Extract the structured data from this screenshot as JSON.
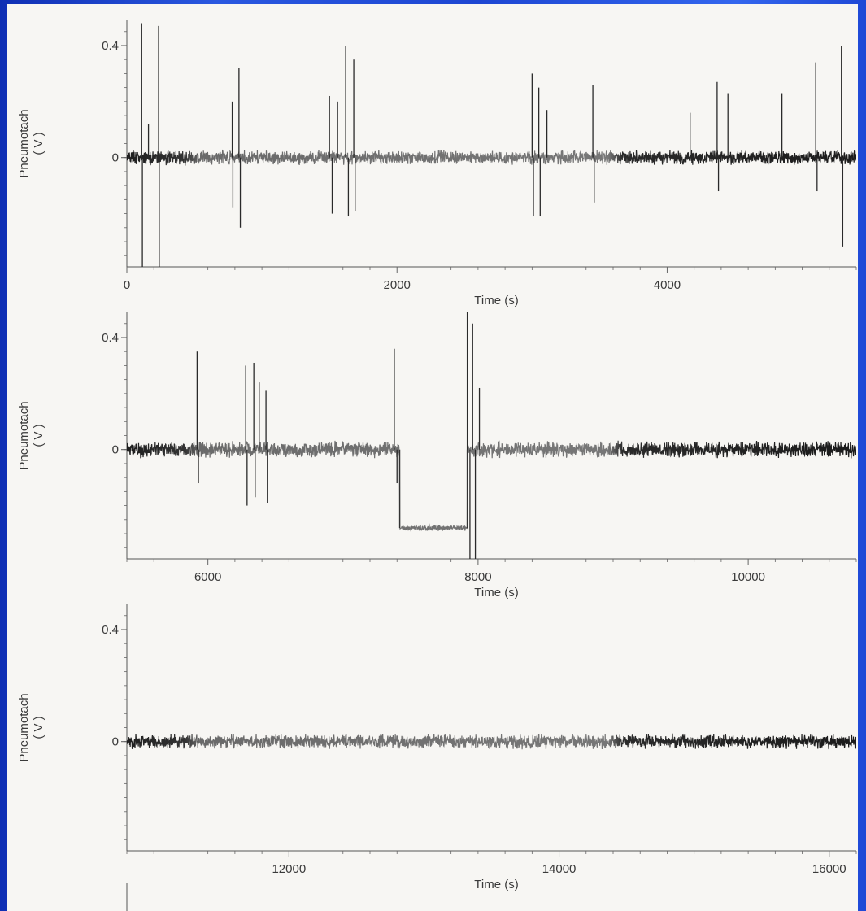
{
  "chart_data": [
    {
      "type": "line",
      "xlabel": "Time (s)",
      "ylabel": "Pneumotach",
      "ylabel_unit": "( V )",
      "xlim": [
        0,
        5400
      ],
      "ylim": [
        -0.39,
        0.49
      ],
      "x_ticks": [
        0,
        2000,
        4000
      ],
      "y_ticks": [
        0.4,
        0
      ],
      "series": [
        {
          "baseline_noise": 0.022,
          "spikes": [
            {
              "x": 110,
              "y": 0.48
            },
            {
              "x": 115,
              "y": -0.39
            },
            {
              "x": 235,
              "y": 0.47
            },
            {
              "x": 240,
              "y": -0.39
            },
            {
              "x": 160,
              "y": 0.12
            },
            {
              "x": 780,
              "y": 0.2
            },
            {
              "x": 785,
              "y": -0.18
            },
            {
              "x": 830,
              "y": 0.32
            },
            {
              "x": 840,
              "y": -0.25
            },
            {
              "x": 1500,
              "y": 0.22
            },
            {
              "x": 1520,
              "y": -0.2
            },
            {
              "x": 1560,
              "y": 0.2
            },
            {
              "x": 1620,
              "y": 0.4
            },
            {
              "x": 1640,
              "y": -0.21
            },
            {
              "x": 1680,
              "y": 0.35
            },
            {
              "x": 1690,
              "y": -0.19
            },
            {
              "x": 3000,
              "y": 0.3
            },
            {
              "x": 3010,
              "y": -0.21
            },
            {
              "x": 3050,
              "y": 0.25
            },
            {
              "x": 3060,
              "y": -0.21
            },
            {
              "x": 3110,
              "y": 0.17
            },
            {
              "x": 3450,
              "y": 0.26
            },
            {
              "x": 3460,
              "y": -0.16
            },
            {
              "x": 4170,
              "y": 0.16
            },
            {
              "x": 4370,
              "y": 0.27
            },
            {
              "x": 4380,
              "y": -0.12
            },
            {
              "x": 4450,
              "y": 0.23
            },
            {
              "x": 4850,
              "y": 0.23
            },
            {
              "x": 5100,
              "y": 0.34
            },
            {
              "x": 5110,
              "y": -0.12
            },
            {
              "x": 5290,
              "y": 0.4
            },
            {
              "x": 5300,
              "y": -0.32
            }
          ]
        }
      ]
    },
    {
      "type": "line",
      "xlabel": "Time (s)",
      "ylabel": "Pneumotach",
      "ylabel_unit": "( V )",
      "xlim": [
        5400,
        10800
      ],
      "ylim": [
        -0.39,
        0.49
      ],
      "x_ticks": [
        6000,
        8000,
        10000
      ],
      "y_ticks": [
        0.4,
        0
      ],
      "series": [
        {
          "baseline_noise": 0.025,
          "plateau": {
            "x_start": 7420,
            "x_end": 7920,
            "y": -0.28
          },
          "spikes": [
            {
              "x": 5920,
              "y": 0.35
            },
            {
              "x": 5930,
              "y": -0.12
            },
            {
              "x": 6280,
              "y": 0.3
            },
            {
              "x": 6290,
              "y": -0.2
            },
            {
              "x": 6340,
              "y": 0.31
            },
            {
              "x": 6350,
              "y": -0.17
            },
            {
              "x": 6380,
              "y": 0.24
            },
            {
              "x": 6430,
              "y": 0.21
            },
            {
              "x": 6440,
              "y": -0.19
            },
            {
              "x": 7380,
              "y": 0.36
            },
            {
              "x": 7400,
              "y": -0.12
            },
            {
              "x": 7920,
              "y": 0.49
            },
            {
              "x": 7940,
              "y": -0.39
            },
            {
              "x": 7960,
              "y": 0.45
            },
            {
              "x": 7980,
              "y": -0.39
            },
            {
              "x": 8010,
              "y": 0.22
            }
          ]
        }
      ]
    },
    {
      "type": "line",
      "xlabel": "Time (s)",
      "ylabel": "Pneumotach",
      "ylabel_unit": "( V )",
      "xlim": [
        10800,
        16200
      ],
      "ylim": [
        -0.39,
        0.49
      ],
      "x_ticks": [
        12000,
        14000,
        16000
      ],
      "y_ticks": [
        0.4,
        0
      ],
      "series": [
        {
          "baseline_noise": 0.022,
          "spikes": []
        }
      ]
    }
  ]
}
